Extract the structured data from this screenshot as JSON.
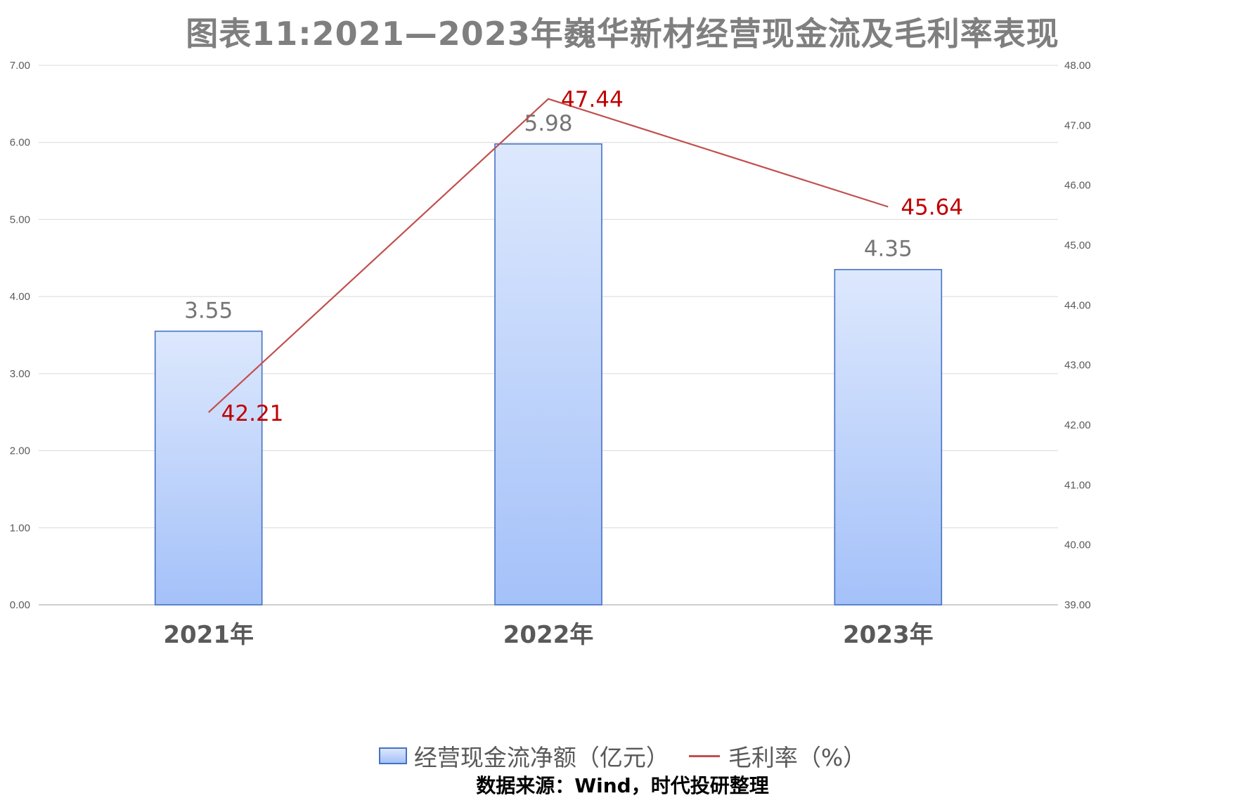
{
  "chart_data": {
    "type": "bar",
    "title": "图表11:2021—2023年巍华新材经营现金流及毛利率表现",
    "categories": [
      "2021年",
      "2022年",
      "2023年"
    ],
    "series": [
      {
        "name": "经营现金流净额（亿元）",
        "type": "bar",
        "axis": "left",
        "values": [
          3.55,
          5.98,
          4.35
        ],
        "labels": [
          "3.55",
          "5.98",
          "4.35"
        ],
        "color": "#a4c1f9"
      },
      {
        "name": "毛利率（%）",
        "type": "line",
        "axis": "right",
        "values": [
          42.21,
          47.44,
          45.64
        ],
        "labels": [
          "42.21",
          "47.44",
          "45.64"
        ],
        "color": "#c0504d"
      }
    ],
    "y_left": {
      "range": [
        0,
        7
      ],
      "ticks": [
        "0.00",
        "1.00",
        "2.00",
        "3.00",
        "4.00",
        "5.00",
        "6.00",
        "7.00"
      ]
    },
    "y_right": {
      "range": [
        39,
        48
      ],
      "ticks": [
        "39.00",
        "40.00",
        "41.00",
        "42.00",
        "43.00",
        "44.00",
        "45.00",
        "46.00",
        "47.00",
        "48.00"
      ]
    },
    "grid": true,
    "legend_position": "bottom",
    "source": "数据来源：Wind，时代投研整理"
  }
}
